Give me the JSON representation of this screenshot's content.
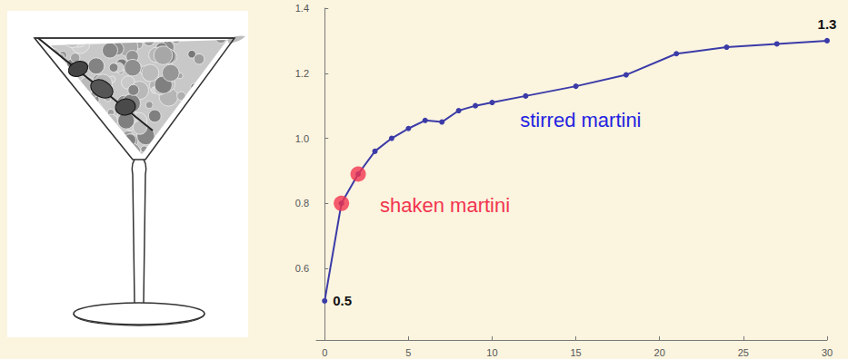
{
  "chart_data": {
    "type": "line",
    "x": [
      0,
      1,
      2,
      3,
      4,
      5,
      6,
      7,
      8,
      9,
      10,
      12,
      15,
      18,
      21,
      24,
      27,
      30
    ],
    "series": [
      {
        "name": "stirred martini",
        "color": "#3b3ba8",
        "marker": "circle",
        "values": [
          0.5,
          0.8,
          0.89,
          0.96,
          1.0,
          1.03,
          1.055,
          1.05,
          1.085,
          1.1,
          1.11,
          1.13,
          1.16,
          1.195,
          1.26,
          1.28,
          1.29,
          1.3
        ],
        "value_labels": [
          "0.5",
          null,
          null,
          null,
          null,
          null,
          null,
          null,
          null,
          null,
          null,
          null,
          null,
          null,
          null,
          null,
          null,
          "1.3"
        ]
      },
      {
        "name": "shaken martini",
        "color": "#f2344f",
        "type": "scatter",
        "marker": "circle",
        "x": [
          1,
          2
        ],
        "values": [
          0.8,
          0.89
        ]
      }
    ],
    "xlim": [
      -0.5,
      30
    ],
    "xticks": [
      0,
      5,
      10,
      15,
      20,
      25,
      30
    ],
    "ylim": [
      0.38,
      1.4
    ],
    "yticks": [
      0.6,
      0.8,
      {
        "value": 1,
        "label": "1.0"
      },
      1.2,
      1.4
    ],
    "grid": false
  }
}
